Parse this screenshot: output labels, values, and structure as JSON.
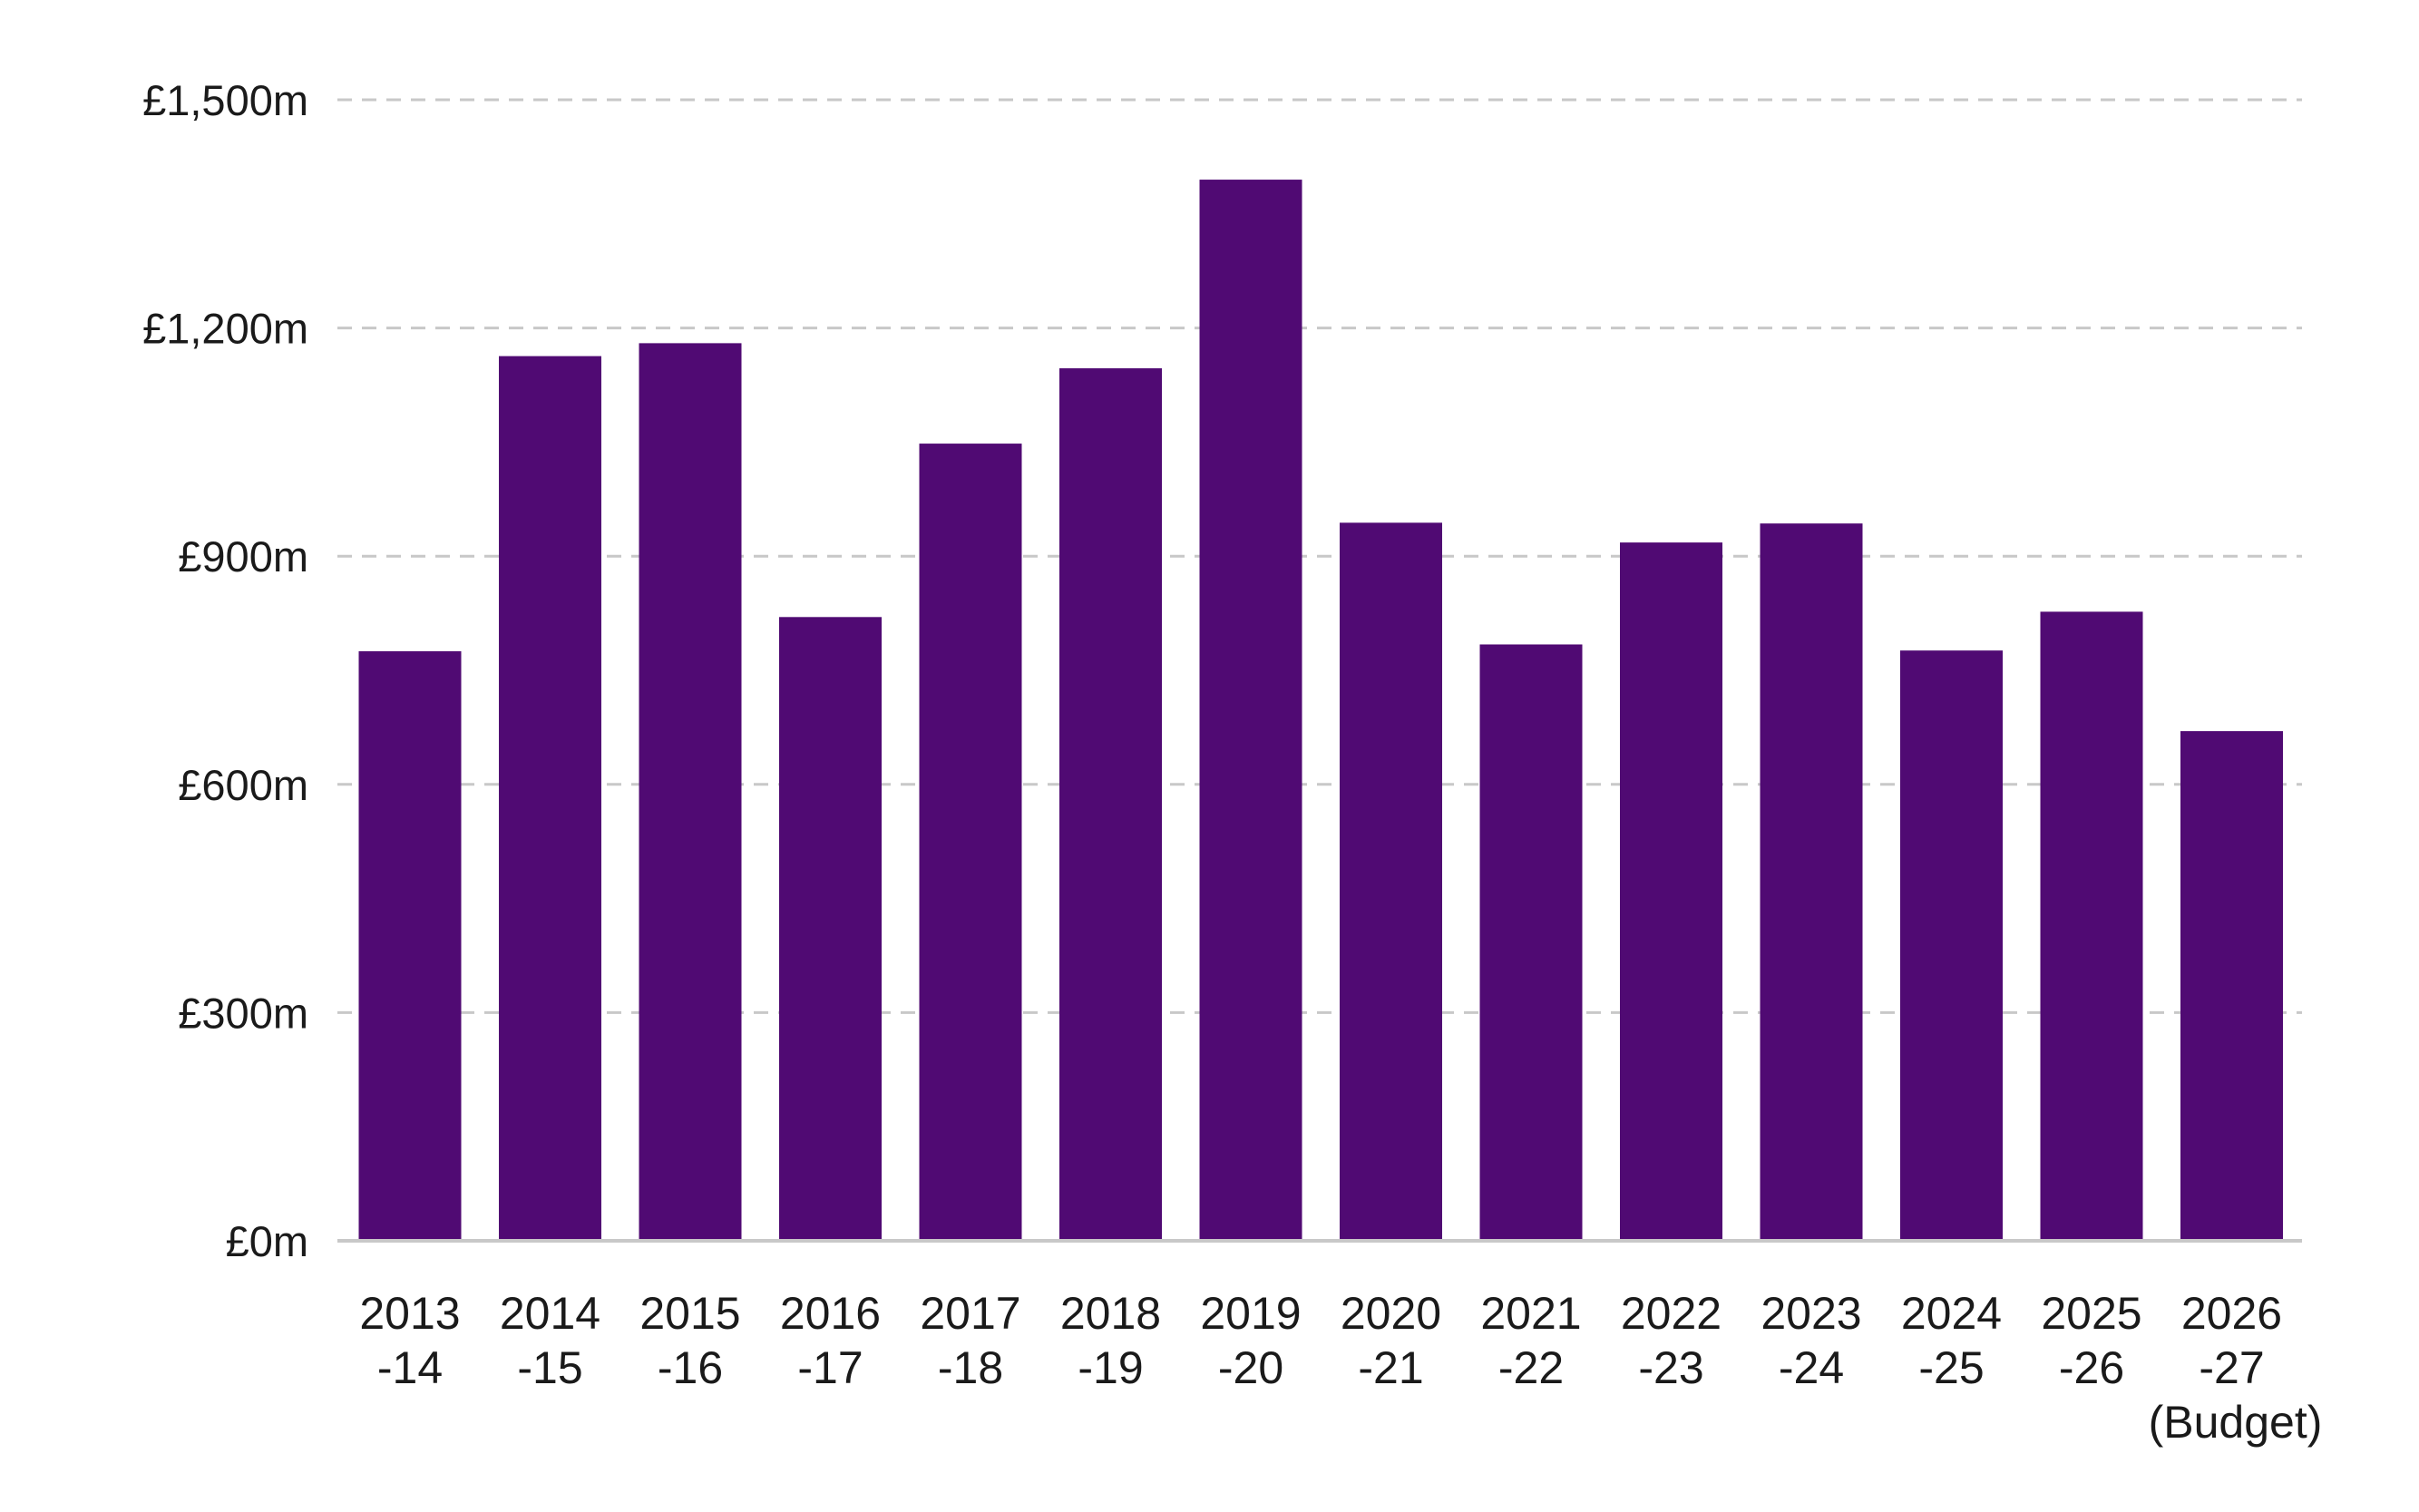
{
  "chart_data": {
    "type": "bar",
    "categories": [
      [
        "2013",
        "-14"
      ],
      [
        "2014",
        "-15"
      ],
      [
        "2015",
        "-16"
      ],
      [
        "2016",
        "-17"
      ],
      [
        "2017",
        "-18"
      ],
      [
        "2018",
        "-19"
      ],
      [
        "2019",
        "-20"
      ],
      [
        "2020",
        "-21"
      ],
      [
        "2021",
        "-22"
      ],
      [
        "2022",
        "-23"
      ],
      [
        "2023",
        "-24"
      ],
      [
        "2024",
        "-25"
      ],
      [
        "2025",
        "-26"
      ],
      [
        "2026",
        "-27",
        "(Budget)"
      ]
    ],
    "values": [
      775,
      1163,
      1180,
      820,
      1048,
      1147,
      1395,
      944,
      784,
      918,
      943,
      776,
      827,
      670
    ],
    "unit": "£m",
    "ylim": [
      0,
      1500
    ],
    "yticks": [
      0,
      300,
      600,
      900,
      1200,
      1500
    ],
    "ytick_labels": [
      "£0m",
      "£300m",
      "£600m",
      "£900m",
      "£1,200m",
      "£1,500m"
    ],
    "title": "",
    "xlabel": "",
    "ylabel": "",
    "grid": "horizontal dashed",
    "legend": "none",
    "colors": {
      "bar": "#500a73",
      "grid": "#c8c8c8",
      "axis": "#c8c8c8",
      "text": "#1a1a1a"
    }
  }
}
